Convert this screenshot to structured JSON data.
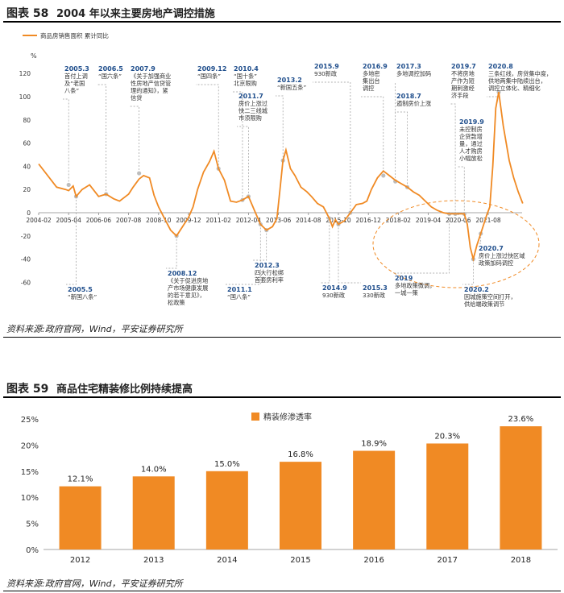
{
  "figure58": {
    "fig_no": "图表 58",
    "title": "2004 年以来主要房地产调控措施",
    "source": "资料来源:政府官网，Wind，平安证券研究所"
  },
  "figure59": {
    "fig_no": "图表 59",
    "title": "商品住宅精装修比例持续提高",
    "source": "资料来源:政府官网，Wind，平安证券研究所"
  },
  "colors": {
    "orange": "#f08a24",
    "text_blue": "#1f4e8c",
    "grid": "#d9d9d9"
  },
  "chart_data": [
    {
      "type": "line",
      "title": "2004 年以来主要房地产调控措施",
      "legend": [
        "商品房销售面积 累计同比"
      ],
      "ylabel_unit": "%",
      "ylim": [
        -60,
        120
      ],
      "yticks": [
        "120",
        "100",
        "80",
        "60",
        "40",
        "20",
        "0",
        "-20",
        "-40",
        "-60"
      ],
      "xticks": [
        "2004-02",
        "2005-04",
        "2006-06",
        "2007-08",
        "2008-10",
        "2009-12",
        "2011-02",
        "2012-04",
        "2013-06",
        "2014-08",
        "2015-10",
        "2016-12",
        "2018-02",
        "2019-04",
        "2020-06",
        "2021-08"
      ],
      "series": [
        {
          "name": "商品房销售面积 累计同比",
          "points": [
            [
              0,
              42
            ],
            [
              0.3,
              32
            ],
            [
              0.6,
              22
            ],
            [
              0.9,
              20
            ],
            [
              1.0,
              19
            ],
            [
              1.15,
              23
            ],
            [
              1.25,
              14
            ],
            [
              1.45,
              20
            ],
            [
              1.7,
              24
            ],
            [
              2.0,
              14
            ],
            [
              2.25,
              16
            ],
            [
              2.5,
              12
            ],
            [
              2.7,
              10
            ],
            [
              2.9,
              14
            ],
            [
              3.0,
              16
            ],
            [
              3.15,
              22
            ],
            [
              3.35,
              29
            ],
            [
              3.5,
              32
            ],
            [
              3.7,
              30
            ],
            [
              3.85,
              15
            ],
            [
              4.0,
              5
            ],
            [
              4.2,
              -5
            ],
            [
              4.4,
              -15
            ],
            [
              4.6,
              -20
            ],
            [
              4.8,
              -12
            ],
            [
              5.0,
              -4
            ],
            [
              5.15,
              5
            ],
            [
              5.3,
              20
            ],
            [
              5.5,
              35
            ],
            [
              5.7,
              44
            ],
            [
              5.85,
              53
            ],
            [
              6.0,
              38
            ],
            [
              6.2,
              28
            ],
            [
              6.4,
              10
            ],
            [
              6.6,
              9
            ],
            [
              6.8,
              11
            ],
            [
              7.0,
              14
            ],
            [
              7.2,
              2
            ],
            [
              7.4,
              -10
            ],
            [
              7.6,
              -15
            ],
            [
              7.8,
              -12
            ],
            [
              7.95,
              -5
            ],
            [
              8.05,
              20
            ],
            [
              8.15,
              45
            ],
            [
              8.25,
              54
            ],
            [
              8.4,
              38
            ],
            [
              8.55,
              32
            ],
            [
              8.75,
              22
            ],
            [
              8.95,
              18
            ],
            [
              9.1,
              14
            ],
            [
              9.3,
              8
            ],
            [
              9.5,
              5
            ],
            [
              9.7,
              -5
            ],
            [
              9.8,
              -12
            ],
            [
              9.9,
              -6
            ],
            [
              10.0,
              -10
            ],
            [
              10.2,
              -7
            ],
            [
              10.4,
              0
            ],
            [
              10.6,
              7
            ],
            [
              10.8,
              8
            ],
            [
              10.95,
              10
            ],
            [
              11.1,
              20
            ],
            [
              11.3,
              30
            ],
            [
              11.5,
              36
            ],
            [
              11.7,
              32
            ],
            [
              11.9,
              28
            ],
            [
              12.1,
              25
            ],
            [
              12.3,
              22
            ],
            [
              12.5,
              18
            ],
            [
              12.7,
              15
            ],
            [
              12.9,
              10
            ],
            [
              13.1,
              5
            ],
            [
              13.3,
              2
            ],
            [
              13.5,
              0
            ],
            [
              13.7,
              -1
            ],
            [
              14.0,
              -1
            ],
            [
              14.2,
              -1
            ],
            [
              14.3,
              -10
            ],
            [
              14.4,
              -30
            ],
            [
              14.5,
              -40
            ],
            [
              14.62,
              -28
            ],
            [
              14.75,
              -18
            ],
            [
              14.85,
              -10
            ],
            [
              14.95,
              -2
            ],
            [
              15.05,
              5
            ],
            [
              15.15,
              40
            ],
            [
              15.25,
              90
            ],
            [
              15.35,
              104
            ],
            [
              15.5,
              75
            ],
            [
              15.7,
              45
            ],
            [
              15.85,
              30
            ],
            [
              16.0,
              18
            ],
            [
              16.15,
              8
            ]
          ]
        }
      ],
      "events": [
        {
          "date": "2005.3",
          "text": "首付上调 及“老国 八条”"
        },
        {
          "date": "2005.5",
          "text": "“新国八条”"
        },
        {
          "date": "2006.5",
          "text": "“国六条”"
        },
        {
          "date": "2007.9",
          "text": "《关于加强商业 性房地产信贷管 理的通知》，紧 信贷"
        },
        {
          "date": "2008.12",
          "text": "《关于促进房地 产市场健康发展 的若干意见》， 松政策"
        },
        {
          "date": "2009.12",
          "text": "“国四条”"
        },
        {
          "date": "2010.4",
          "text": "“国十条” 北京限购"
        },
        {
          "date": "2011.1",
          "text": "“国八条”"
        },
        {
          "date": "2011.7",
          "text": "房价上涨过 快二三线城 市须限购"
        },
        {
          "date": "2012.3",
          "text": "四大行松绑 首套房利率"
        },
        {
          "date": "2013.2",
          "text": "“新国五条”"
        },
        {
          "date": "2014.9",
          "text": "930新政"
        },
        {
          "date": "2015.3",
          "text": "330新政"
        },
        {
          "date": "2015.9",
          "text": "930新政"
        },
        {
          "date": "2016.9",
          "text": "多地密 集出台 调控"
        },
        {
          "date": "2017.3",
          "text": "多地调控加码"
        },
        {
          "date": "2018.7",
          "text": "遏制房价上涨"
        },
        {
          "date": "2019",
          "text": "多地政策微调， 一城一策"
        },
        {
          "date": "2019.7",
          "text": "不将房地 产作为短 期刺激经 济手段"
        },
        {
          "date": "2019.9",
          "text": "未控制房 企贷款增 量，通过 人才购房 小幅放松"
        },
        {
          "date": "2020.2",
          "text": "因城施策空间打开， 供给端政策调节"
        },
        {
          "date": "2020.7",
          "text": "房价上涨过快区域 政策加码调控"
        },
        {
          "date": "2020.8",
          "text": "三条红线，房贷集中度， 供地两集中陆续出台， 调控立体化、精细化"
        }
      ]
    },
    {
      "type": "bar",
      "title": "商品住宅精装修比例持续提高",
      "legend": [
        "精装修渗透率"
      ],
      "categories": [
        "2012",
        "2013",
        "2014",
        "2015",
        "2016",
        "2017",
        "2018"
      ],
      "values": [
        12.1,
        14.0,
        15.0,
        16.8,
        18.9,
        20.3,
        23.6
      ],
      "value_labels": [
        "12.1%",
        "14.0%",
        "15.0%",
        "16.8%",
        "18.9%",
        "20.3%",
        "23.6%"
      ],
      "ylim": [
        0,
        25
      ],
      "yticks": [
        "25%",
        "20%",
        "15%",
        "10%",
        "5%",
        "0%"
      ]
    }
  ]
}
